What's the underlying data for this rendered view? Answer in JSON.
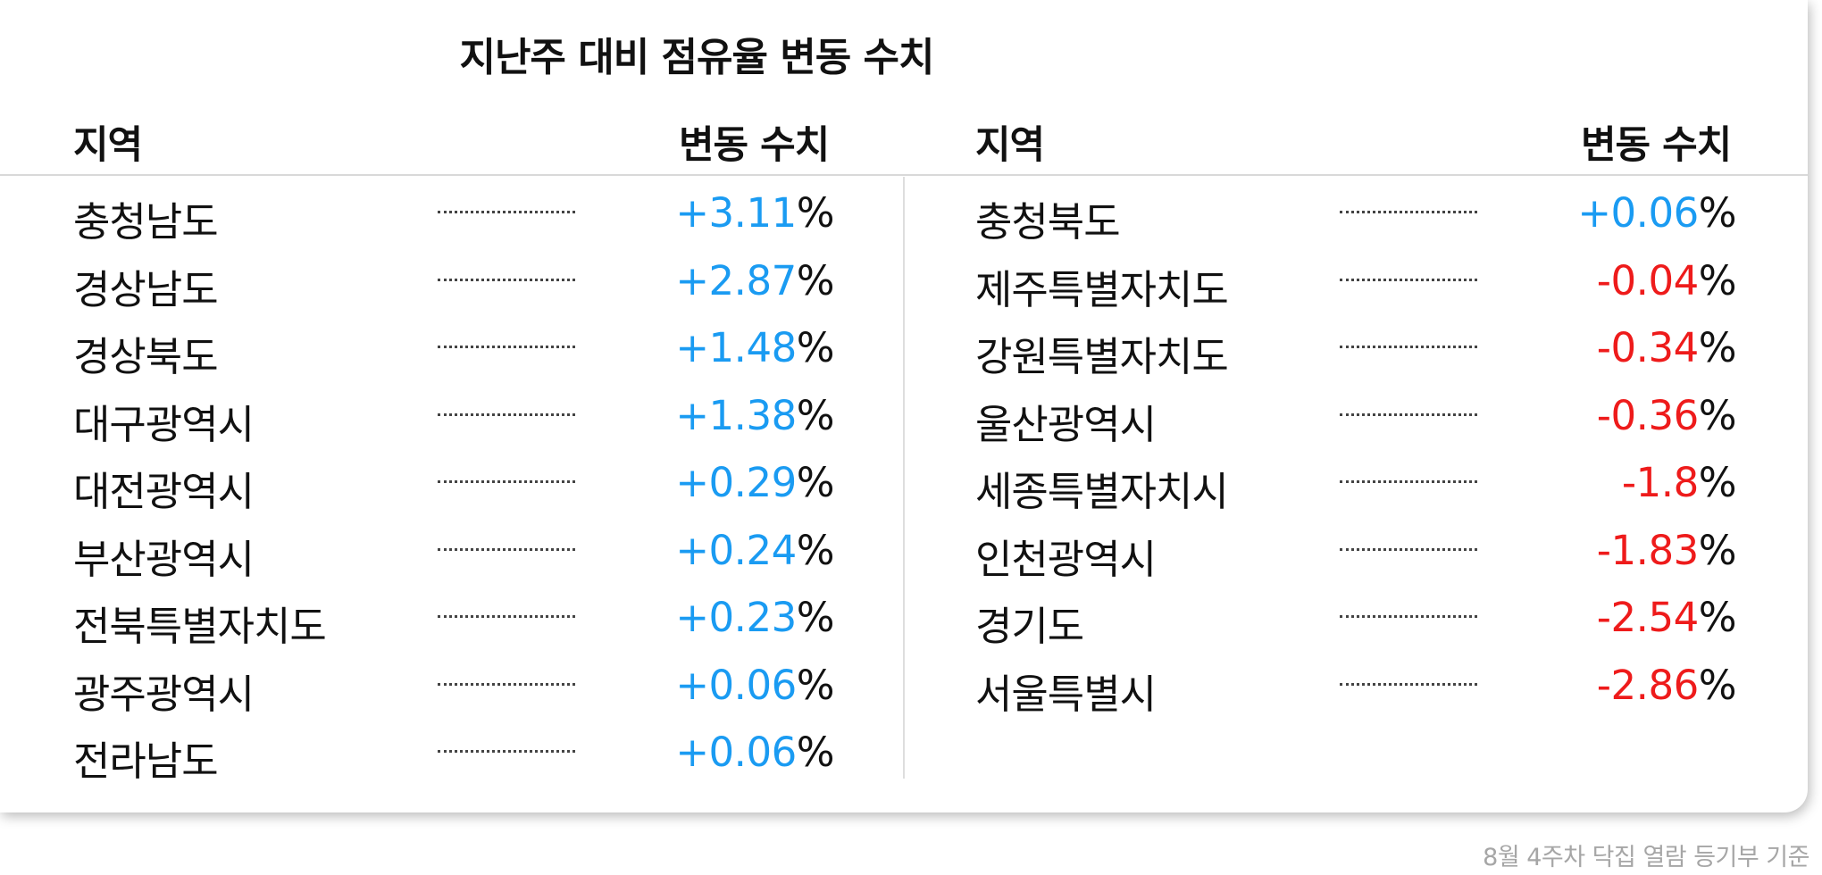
{
  "title": "지난주 대비 점유율 변동 수치",
  "columns": [
    {
      "header_region": "지역",
      "header_value": "변동 수치",
      "rows": [
        {
          "region": "충청남도",
          "value": "+3.11",
          "unit": "%",
          "sign": "pos"
        },
        {
          "region": "경상남도",
          "value": "+2.87",
          "unit": "%",
          "sign": "pos"
        },
        {
          "region": "경상북도",
          "value": "+1.48",
          "unit": "%",
          "sign": "pos"
        },
        {
          "region": "대구광역시",
          "value": "+1.38",
          "unit": "%",
          "sign": "pos"
        },
        {
          "region": "대전광역시",
          "value": "+0.29",
          "unit": "%",
          "sign": "pos"
        },
        {
          "region": "부산광역시",
          "value": "+0.24",
          "unit": "%",
          "sign": "pos"
        },
        {
          "region": "전북특별자치도",
          "value": "+0.23",
          "unit": "%",
          "sign": "pos"
        },
        {
          "region": "광주광역시",
          "value": "+0.06",
          "unit": "%",
          "sign": "pos"
        },
        {
          "region": "전라남도",
          "value": "+0.06",
          "unit": "%",
          "sign": "pos"
        }
      ]
    },
    {
      "header_region": "지역",
      "header_value": "변동 수치",
      "rows": [
        {
          "region": "충청북도",
          "value": "+0.06",
          "unit": "%",
          "sign": "pos"
        },
        {
          "region": "제주특별자치도",
          "value": "-0.04",
          "unit": "%",
          "sign": "neg"
        },
        {
          "region": "강원특별자치도",
          "value": "-0.34",
          "unit": "%",
          "sign": "neg"
        },
        {
          "region": "울산광역시",
          "value": "-0.36",
          "unit": "%",
          "sign": "neg"
        },
        {
          "region": "세종특별자치시",
          "value": "-1.8",
          "unit": "%",
          "sign": "neg"
        },
        {
          "region": "인천광역시",
          "value": "-1.83",
          "unit": "%",
          "sign": "neg"
        },
        {
          "region": "경기도",
          "value": "-2.54",
          "unit": "%",
          "sign": "neg"
        },
        {
          "region": "서울특별시",
          "value": "-2.86",
          "unit": "%",
          "sign": "neg"
        }
      ]
    }
  ],
  "footnote": "8월 4주차 닥집 열람 등기부 기준",
  "colors": {
    "positive": "#1a9bf2",
    "negative": "#ee1b1b"
  }
}
